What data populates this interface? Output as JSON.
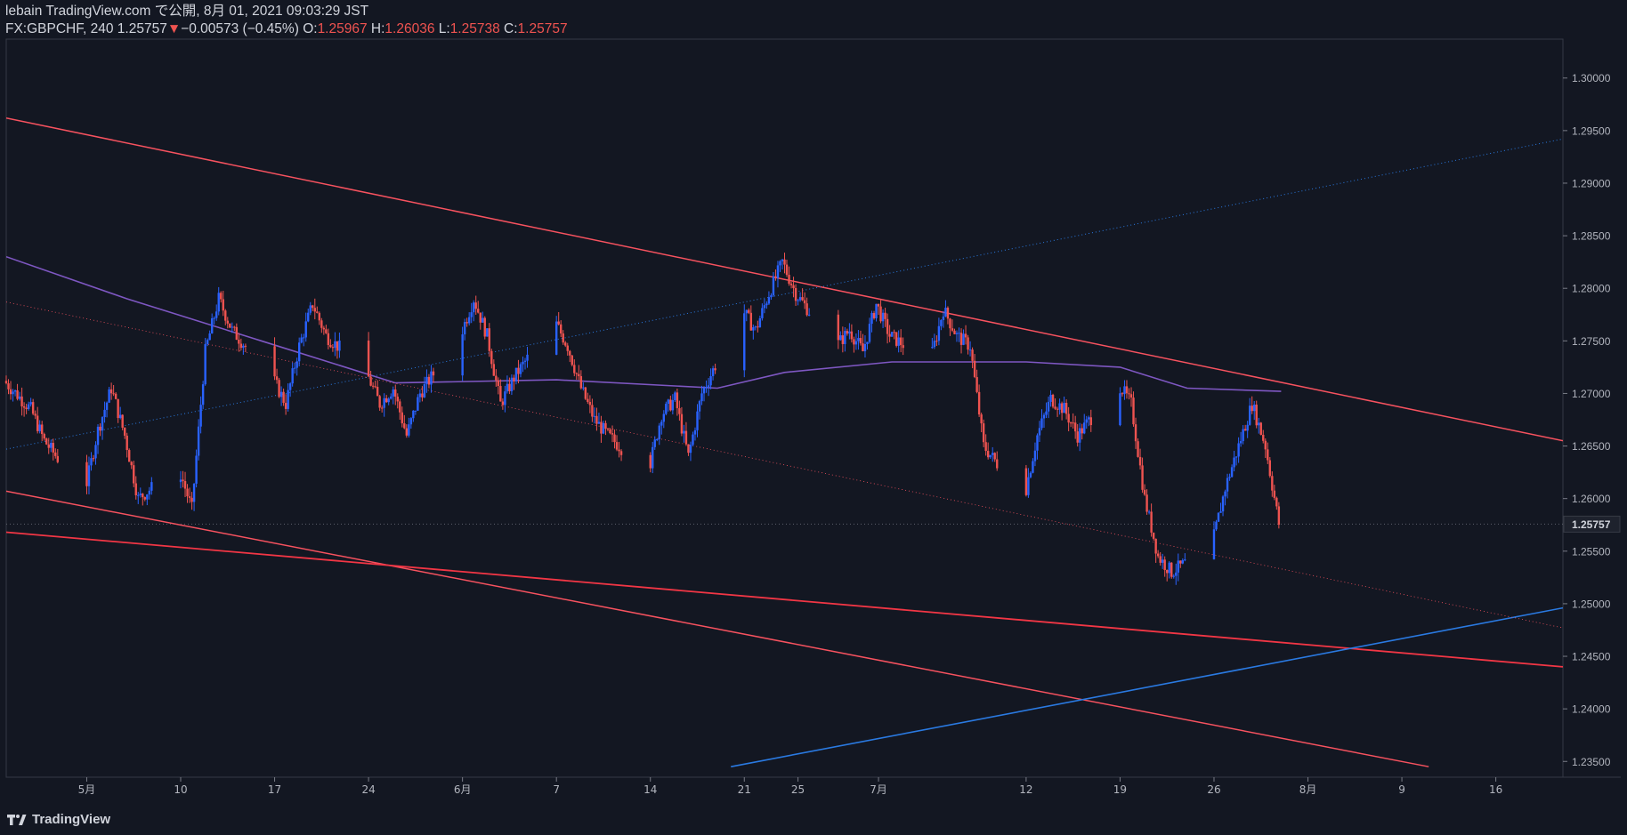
{
  "header": {
    "line1": "lebain TradingView.com で公開, 8月 01, 2021 09:03:29 JST",
    "symbol": "FX:GBPCHF, 240",
    "last": "1.25757",
    "arrow": "▼",
    "change": "−0.00573 (−0.45%)",
    "o_label": "O:",
    "o": "1.25967",
    "h_label": "H:",
    "h": "1.26036",
    "l_label": "L:",
    "l": "1.25738",
    "c_label": "C:",
    "c": "1.25757"
  },
  "footer": {
    "brand": "TradingView"
  },
  "colors": {
    "background": "#131722",
    "up": "#2962ff",
    "down": "#ef5350",
    "ma": "#7e57c2",
    "channel": "#f7525f",
    "support": "#f23645",
    "trend_blue": "#2a7ae2"
  },
  "chart_data": {
    "type": "candlestick",
    "symbol": "FX:GBPCHF",
    "interval": "240",
    "ylim": [
      1.2335,
      1.3037
    ],
    "y_ticks": [
      "1.30000",
      "1.29500",
      "1.29000",
      "1.28500",
      "1.28000",
      "1.27500",
      "1.27000",
      "1.26500",
      "1.26000",
      "1.25500",
      "1.25000",
      "1.24500",
      "1.24000",
      "1.23500"
    ],
    "last_price_label": "1.25757",
    "x_ticks": [
      "5月",
      "10",
      "17",
      "24",
      "6月",
      "7",
      "14",
      "21",
      "25",
      "7月",
      "12",
      "19",
      "26",
      "8月",
      "9",
      "16"
    ],
    "x_range": [
      "2021-04-27",
      "2021-08-21"
    ],
    "x_tick_dates": [
      "2021-05-03",
      "2021-05-10",
      "2021-05-17",
      "2021-05-24",
      "2021-05-31",
      "2021-06-07",
      "2021-06-14",
      "2021-06-21",
      "2021-06-25",
      "2021-07-01",
      "2021-07-12",
      "2021-07-19",
      "2021-07-26",
      "2021-08-02",
      "2021-08-09",
      "2021-08-16"
    ],
    "price_path": [
      [
        "2021-04-27",
        1.2712
      ],
      [
        "2021-04-29",
        1.2685
      ],
      [
        "2021-04-30",
        1.2655
      ],
      [
        "2021-05-03",
        1.2605
      ],
      [
        "2021-05-04",
        1.2665
      ],
      [
        "2021-05-05",
        1.2705
      ],
      [
        "2021-05-06",
        1.266
      ],
      [
        "2021-05-07",
        1.26
      ],
      [
        "2021-05-10",
        1.263
      ],
      [
        "2021-05-11",
        1.259
      ],
      [
        "2021-05-12",
        1.274
      ],
      [
        "2021-05-13",
        1.279
      ],
      [
        "2021-05-14",
        1.276
      ],
      [
        "2021-05-17",
        1.2715
      ],
      [
        "2021-05-18",
        1.269
      ],
      [
        "2021-05-19",
        1.2745
      ],
      [
        "2021-05-20",
        1.2785
      ],
      [
        "2021-05-21",
        1.2755
      ],
      [
        "2021-05-24",
        1.272
      ],
      [
        "2021-05-25",
        1.269
      ],
      [
        "2021-05-26",
        1.2705
      ],
      [
        "2021-05-27",
        1.266
      ],
      [
        "2021-05-28",
        1.27
      ],
      [
        "2021-05-31",
        1.2755
      ],
      [
        "2021-06-01",
        1.279
      ],
      [
        "2021-06-02",
        1.2755
      ],
      [
        "2021-06-03",
        1.269
      ],
      [
        "2021-06-04",
        1.2715
      ],
      [
        "2021-06-07",
        1.277
      ],
      [
        "2021-06-08",
        1.2745
      ],
      [
        "2021-06-09",
        1.2705
      ],
      [
        "2021-06-10",
        1.2675
      ],
      [
        "2021-06-11",
        1.266
      ],
      [
        "2021-06-14",
        1.2625
      ],
      [
        "2021-06-15",
        1.268
      ],
      [
        "2021-06-16",
        1.2695
      ],
      [
        "2021-06-17",
        1.264
      ],
      [
        "2021-06-18",
        1.27
      ],
      [
        "2021-06-21",
        1.278
      ],
      [
        "2021-06-22",
        1.276
      ],
      [
        "2021-06-23",
        1.2795
      ],
      [
        "2021-06-24",
        1.2825
      ],
      [
        "2021-06-25",
        1.2795
      ],
      [
        "2021-06-28",
        1.2745
      ],
      [
        "2021-06-29",
        1.276
      ],
      [
        "2021-06-30",
        1.274
      ],
      [
        "2021-07-01",
        1.2785
      ],
      [
        "2021-07-02",
        1.2755
      ],
      [
        "2021-07-05",
        1.273
      ],
      [
        "2021-07-06",
        1.278
      ],
      [
        "2021-07-07",
        1.2755
      ],
      [
        "2021-07-08",
        1.2745
      ],
      [
        "2021-07-09",
        1.265
      ],
      [
        "2021-07-12",
        1.26
      ],
      [
        "2021-07-13",
        1.266
      ],
      [
        "2021-07-14",
        1.2695
      ],
      [
        "2021-07-15",
        1.2685
      ],
      [
        "2021-07-16",
        1.266
      ],
      [
        "2021-07-19",
        1.271
      ],
      [
        "2021-07-20",
        1.269
      ],
      [
        "2021-07-21",
        1.26
      ],
      [
        "2021-07-22",
        1.2545
      ],
      [
        "2021-07-23",
        1.253
      ],
      [
        "2021-07-26",
        1.2555
      ],
      [
        "2021-07-27",
        1.261
      ],
      [
        "2021-07-28",
        1.265
      ],
      [
        "2021-07-29",
        1.269
      ],
      [
        "2021-07-30",
        1.265
      ],
      [
        "2021-07-31",
        1.2576
      ]
    ],
    "overlays": [
      {
        "name": "ma",
        "type": "moving_average",
        "points": [
          [
            "2021-04-27",
            1.283
          ],
          [
            "2021-05-06",
            1.279
          ],
          [
            "2021-05-16",
            1.275
          ],
          [
            "2021-05-26",
            1.271
          ],
          [
            "2021-06-07",
            1.2713
          ],
          [
            "2021-06-19",
            1.2705
          ],
          [
            "2021-06-24",
            1.272
          ],
          [
            "2021-07-02",
            1.273
          ],
          [
            "2021-07-12",
            1.273
          ],
          [
            "2021-07-19",
            1.2725
          ],
          [
            "2021-07-24",
            1.2705
          ],
          [
            "2021-07-31",
            1.2702
          ]
        ]
      },
      {
        "name": "upper-channel",
        "type": "trendline",
        "from": [
          "2021-04-27",
          1.2962
        ],
        "to": [
          "2021-08-21",
          1.2655
        ]
      },
      {
        "name": "lower-channel",
        "type": "trendline",
        "from": [
          "2021-04-27",
          1.2607
        ],
        "to": [
          "2021-08-11",
          1.2345
        ]
      },
      {
        "name": "support",
        "type": "trendline",
        "from": [
          "2021-04-27",
          1.2568
        ],
        "to": [
          "2021-08-21",
          1.244
        ]
      },
      {
        "name": "blue-trend",
        "type": "trendline",
        "from": [
          "2021-06-20",
          1.2345
        ],
        "to": [
          "2021-08-21",
          1.2496
        ]
      },
      {
        "name": "blue-dotted",
        "type": "trendline_dotted",
        "from": [
          "2021-04-27",
          1.2647
        ],
        "to": [
          "2021-08-21",
          1.2942
        ]
      },
      {
        "name": "red-dotted",
        "type": "trendline_dotted",
        "from": [
          "2021-04-27",
          1.2787
        ],
        "to": [
          "2021-08-21",
          1.2477
        ]
      }
    ]
  }
}
